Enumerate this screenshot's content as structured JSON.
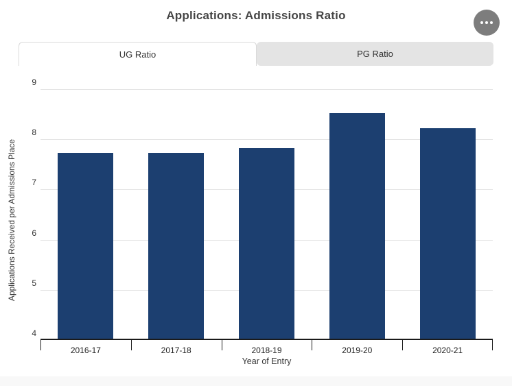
{
  "header": {
    "title": "Applications: Admissions Ratio"
  },
  "tabs": [
    {
      "label": "UG Ratio",
      "active": true
    },
    {
      "label": "PG Ratio",
      "active": false
    }
  ],
  "chart_data": {
    "type": "bar",
    "categories": [
      "2016-17",
      "2017-18",
      "2018-19",
      "2019-20",
      "2020-21"
    ],
    "values": [
      7.7,
      7.7,
      7.8,
      8.5,
      8.2
    ],
    "xlabel": "Year of Entry",
    "ylabel": "Applications Received per Admissions Place",
    "ylim": [
      4,
      9
    ],
    "ytick_step": 1,
    "grid": "horizontal",
    "legend": "none",
    "bar_color": "#1c3f70"
  },
  "colors": {
    "bar": "#1c3f70",
    "grid_line": "#e4e4e4",
    "axis_line": "#1a1a1a",
    "inactive_tab_bg": "#e4e4e4",
    "active_tab_border": "#d9d9d9",
    "menu_button_bg": "#7d7d7d",
    "title_text": "#454545",
    "footer_strip_bg": "#f8f8f8"
  }
}
